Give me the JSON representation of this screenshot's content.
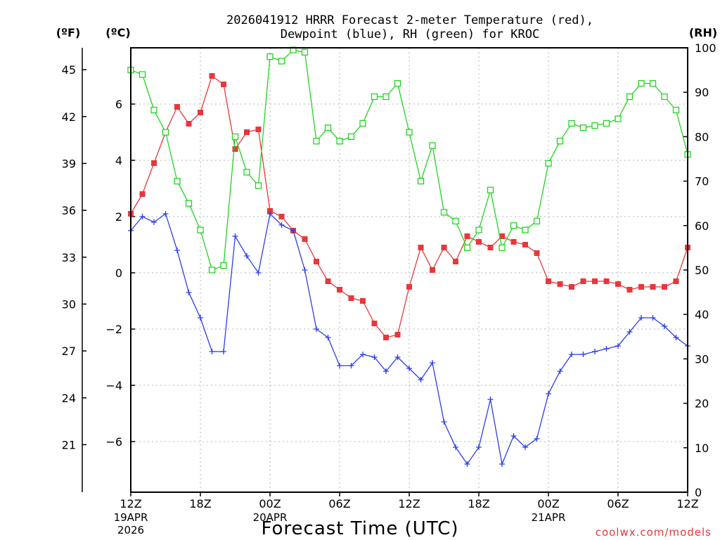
{
  "chart_data": {
    "type": "line",
    "title_line1": "2026041912 HRRR Forecast 2-meter Temperature (red),",
    "title_line2": "Dewpoint (blue), RH (green) for KROC",
    "unit_labels": {
      "fahrenheit": "(ºF)",
      "celsius": "(ºC)",
      "rh": "(RH)"
    },
    "xlabel": "Forecast Time (UTC)",
    "credit": "coolwx.com/models",
    "x_ticks": [
      {
        "hour": 0,
        "label": "12Z",
        "sub1": "19APR",
        "sub2": "2026"
      },
      {
        "hour": 6,
        "label": "18Z",
        "sub1": "",
        "sub2": ""
      },
      {
        "hour": 12,
        "label": "00Z",
        "sub1": "20APR",
        "sub2": ""
      },
      {
        "hour": 18,
        "label": "06Z",
        "sub1": "",
        "sub2": ""
      },
      {
        "hour": 24,
        "label": "12Z",
        "sub1": "",
        "sub2": ""
      },
      {
        "hour": 30,
        "label": "18Z",
        "sub1": "",
        "sub2": ""
      },
      {
        "hour": 36,
        "label": "00Z",
        "sub1": "21APR",
        "sub2": ""
      },
      {
        "hour": 42,
        "label": "06Z",
        "sub1": "",
        "sub2": ""
      },
      {
        "hour": 48,
        "label": "12Z",
        "sub1": "",
        "sub2": ""
      }
    ],
    "xlim": [
      0,
      48
    ],
    "ylim_celsius": [
      -7.8,
      8
    ],
    "ylim_rh": [
      0,
      100
    ],
    "celsius_ticks": [
      "6",
      "4",
      "2",
      "0",
      "−2",
      "−4",
      "−6"
    ],
    "celsius_tick_values": [
      6,
      4,
      2,
      0,
      -2,
      -4,
      -6
    ],
    "fahrenheit_ticks": [
      "45",
      "42",
      "39",
      "36",
      "33",
      "30",
      "27",
      "24",
      "21"
    ],
    "fahrenheit_tick_values": [
      45,
      42,
      39,
      36,
      33,
      30,
      27,
      24,
      21
    ],
    "rh_ticks": [
      "100",
      "90",
      "80",
      "70",
      "60",
      "50",
      "40",
      "30",
      "20",
      "10",
      "0"
    ],
    "rh_tick_values": [
      100,
      90,
      80,
      70,
      60,
      50,
      40,
      30,
      20,
      10,
      0
    ],
    "grid": true,
    "series": [
      {
        "name": "Temperature",
        "axis": "celsius",
        "color": "#e8373b",
        "marker": "filled-square",
        "values": [
          2.1,
          2.8,
          3.9,
          5.0,
          5.9,
          5.3,
          5.7,
          7.0,
          6.7,
          4.4,
          5.0,
          5.1,
          2.2,
          2.0,
          1.5,
          1.2,
          0.4,
          -0.3,
          -0.6,
          -0.9,
          -1.0,
          -1.8,
          -2.3,
          -2.2,
          -0.5,
          0.9,
          0.1,
          0.9,
          0.4,
          1.3,
          1.1,
          0.9,
          1.3,
          1.1,
          1.0,
          0.7,
          -0.3,
          -0.4,
          -0.5,
          -0.3,
          -0.3,
          -0.3,
          -0.4,
          -0.6,
          -0.5,
          -0.5,
          -0.5,
          -0.3,
          0.9
        ]
      },
      {
        "name": "Dewpoint",
        "axis": "celsius",
        "color": "#2b3fe8",
        "marker": "plus",
        "values": [
          1.5,
          2.0,
          1.8,
          2.1,
          0.8,
          -0.7,
          -1.6,
          -2.8,
          -2.8,
          1.3,
          0.6,
          0.0,
          2.1,
          1.7,
          1.5,
          0.1,
          -2.0,
          -2.3,
          -3.3,
          -3.3,
          -2.9,
          -3.0,
          -3.5,
          -3.0,
          -3.4,
          -3.8,
          -3.2,
          -5.3,
          -6.2,
          -6.8,
          -6.2,
          -4.5,
          -6.8,
          -5.8,
          -6.2,
          -5.9,
          -4.3,
          -3.5,
          -2.9,
          -2.9,
          -2.8,
          -2.7,
          -2.6,
          -2.1,
          -1.6,
          -1.6,
          -1.9,
          -2.3,
          -2.6
        ]
      },
      {
        "name": "RH",
        "axis": "rh",
        "color": "#22d422",
        "marker": "open-square",
        "values": [
          95,
          94,
          86,
          81,
          70,
          65,
          59,
          50,
          51,
          80,
          72,
          69,
          98,
          97,
          99.5,
          99,
          79,
          82,
          79,
          80,
          83,
          89,
          89,
          92,
          81,
          70,
          78,
          63,
          61,
          55,
          59,
          68,
          55,
          60,
          59,
          61,
          74,
          79,
          83,
          82,
          82.5,
          83,
          84,
          89,
          92,
          92,
          89,
          86,
          76
        ]
      }
    ]
  }
}
